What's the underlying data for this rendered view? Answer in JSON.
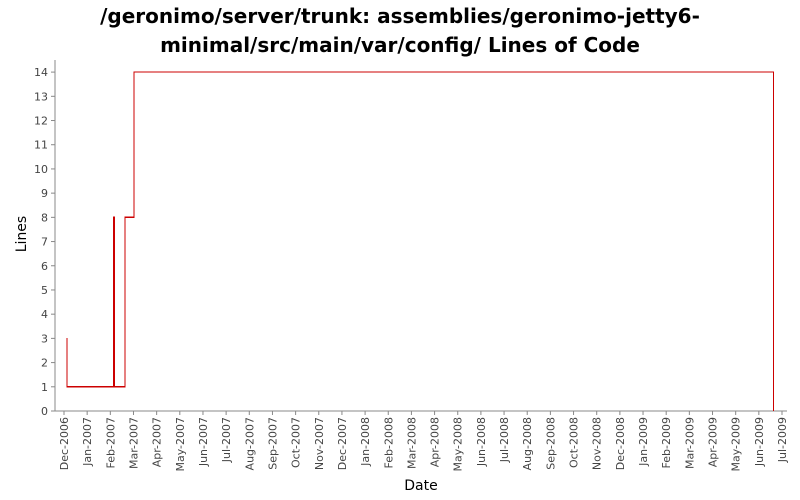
{
  "chart_data": {
    "type": "line",
    "title_line1": "/geronimo/server/trunk: assemblies/geronimo-jetty6-",
    "title_line2": "minimal/src/main/var/config/ Lines of Code",
    "xlabel": "Date",
    "ylabel": "Lines",
    "ylim": [
      0,
      14.5
    ],
    "yticks": [
      0,
      1,
      2,
      3,
      4,
      5,
      6,
      7,
      8,
      9,
      10,
      11,
      12,
      13,
      14
    ],
    "x_ticks": [
      "Dec-2006",
      "Jan-2007",
      "Feb-2007",
      "Mar-2007",
      "Apr-2007",
      "May-2007",
      "Jun-2007",
      "Jul-2007",
      "Aug-2007",
      "Sep-2007",
      "Oct-2007",
      "Nov-2007",
      "Dec-2007",
      "Jan-2008",
      "Feb-2008",
      "Mar-2008",
      "Apr-2008",
      "May-2008",
      "Jun-2008",
      "Jul-2008",
      "Aug-2008",
      "Sep-2008",
      "Oct-2008",
      "Nov-2008",
      "Dec-2008",
      "Jan-2009",
      "Feb-2009",
      "Mar-2009",
      "Apr-2009",
      "May-2009",
      "Jun-2009",
      "Jul-2009"
    ],
    "x_range": [
      "2006-12-01",
      "2009-07-01"
    ],
    "grid": false,
    "line_color": "#cc0000",
    "series": [
      {
        "step": true,
        "points": [
          {
            "x": "2006-12-04",
            "y": 3
          },
          {
            "x": "2006-12-05",
            "y": 1
          },
          {
            "x": "2007-02-03",
            "y": 1
          },
          {
            "x": "2007-02-04",
            "y": 8
          },
          {
            "x": "2007-02-05",
            "y": 1
          },
          {
            "x": "2007-02-18",
            "y": 1
          },
          {
            "x": "2007-02-19",
            "y": 8
          },
          {
            "x": "2007-03-02",
            "y": 8
          },
          {
            "x": "2007-03-03",
            "y": 14
          },
          {
            "x": "2009-06-19",
            "y": 14
          },
          {
            "x": "2009-06-20",
            "y": 0
          }
        ]
      }
    ]
  }
}
